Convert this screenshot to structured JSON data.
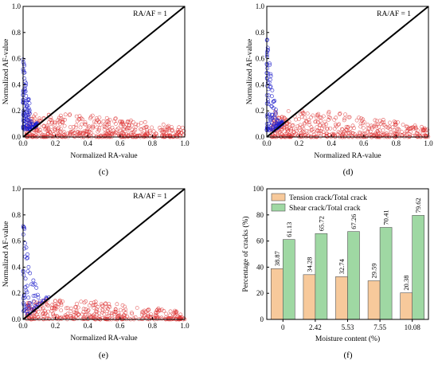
{
  "chart_data": [
    {
      "id": "c",
      "type": "scatter",
      "caption": "(c)",
      "xlabel": "Normalized RA-value",
      "ylabel": "Normalized AF-value",
      "xlim": [
        0,
        1
      ],
      "ylim": [
        0,
        1
      ],
      "xticks": [
        "0.0",
        "0.2",
        "0.4",
        "0.6",
        "0.8",
        "1.0"
      ],
      "yticks": [
        "0.0",
        "0.2",
        "0.4",
        "0.6",
        "0.8",
        "1.0"
      ],
      "annotation": "RA/AF = 1",
      "reference_line": {
        "x": [
          0,
          1
        ],
        "y": [
          0,
          1
        ]
      },
      "series": [
        {
          "cluster": "blue",
          "color": "#2222cc",
          "x_range": [
            0,
            0.09
          ],
          "y_range": [
            0.06,
            0.67
          ],
          "approx_count": 130
        },
        {
          "cluster": "red",
          "color": "#dd3333",
          "x_range": [
            0.02,
            1.0
          ],
          "y_range": [
            0,
            0.18
          ],
          "approx_count": 480
        }
      ]
    },
    {
      "id": "d",
      "type": "scatter",
      "caption": "(d)",
      "xlabel": "Normalized RA-value",
      "ylabel": "Normalized AF-value",
      "xlim": [
        0,
        1
      ],
      "ylim": [
        0,
        1
      ],
      "xticks": [
        "0.0",
        "0.2",
        "0.4",
        "0.6",
        "0.8",
        "1.0"
      ],
      "yticks": [
        "0.0",
        "0.2",
        "0.4",
        "0.6",
        "0.8",
        "1.0"
      ],
      "annotation": "RA/AF = 1",
      "reference_line": {
        "x": [
          0,
          1
        ],
        "y": [
          0,
          1
        ]
      },
      "series": [
        {
          "cluster": "blue",
          "color": "#2222cc",
          "x_range": [
            0,
            0.1
          ],
          "y_range": [
            0.05,
            0.8
          ],
          "approx_count": 120
        },
        {
          "cluster": "red",
          "color": "#dd3333",
          "x_range": [
            0.03,
            1.0
          ],
          "y_range": [
            0,
            0.2
          ],
          "approx_count": 460
        }
      ]
    },
    {
      "id": "e",
      "type": "scatter",
      "caption": "(e)",
      "xlabel": "Normalized RA-value",
      "ylabel": "Normalized AF-value",
      "xlim": [
        0,
        1
      ],
      "ylim": [
        0,
        1
      ],
      "xticks": [
        "0.0",
        "0.2",
        "0.4",
        "0.6",
        "0.8",
        "1.0"
      ],
      "yticks": [
        "0.0",
        "0.2",
        "0.4",
        "0.6",
        "0.8",
        "1.0"
      ],
      "annotation": "RA/AF = 1",
      "reference_line": {
        "x": [
          0,
          1
        ],
        "y": [
          0,
          1
        ]
      },
      "series": [
        {
          "cluster": "blue",
          "color": "#2222cc",
          "x_range": [
            0,
            0.16
          ],
          "y_range": [
            0.04,
            0.8
          ],
          "approx_count": 70
        },
        {
          "cluster": "red",
          "color": "#dd3333",
          "x_range": [
            0.02,
            1.0
          ],
          "y_range": [
            0,
            0.15
          ],
          "approx_count": 380
        }
      ]
    },
    {
      "id": "f",
      "type": "bar",
      "caption": "(f)",
      "xlabel": "Moisture content (%)",
      "ylabel": "Percentage of cracks (%)",
      "ylim": [
        0,
        100
      ],
      "yticks": [
        "0",
        "20",
        "40",
        "60",
        "80",
        "100"
      ],
      "categories": [
        "0",
        "2.42",
        "5.53",
        "7.55",
        "10.08"
      ],
      "legend_position": "top-left",
      "series": [
        {
          "name": "Tension crack/Total crack",
          "color": "#f7c99b",
          "values": [
            38.87,
            34.28,
            32.74,
            29.59,
            20.38
          ]
        },
        {
          "name": "Shear crack/Total crack",
          "color": "#9fd8a3",
          "values": [
            61.13,
            65.72,
            67.26,
            70.41,
            79.62
          ]
        }
      ]
    }
  ]
}
